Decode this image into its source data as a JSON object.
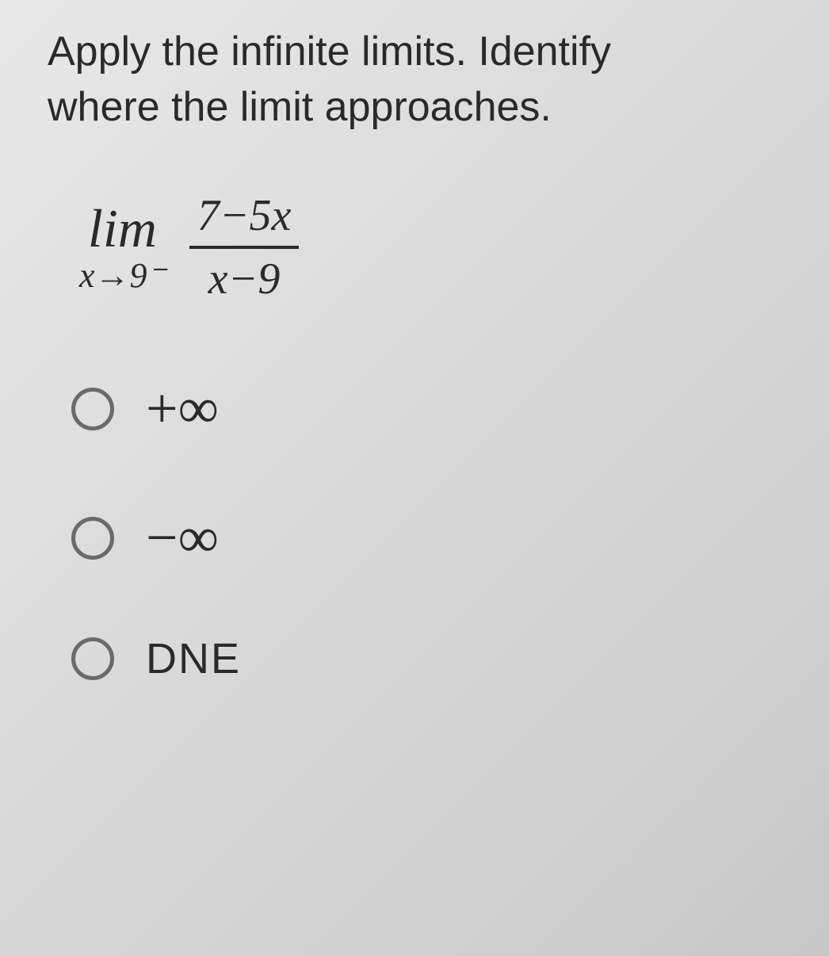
{
  "question": {
    "line1": "Apply the infinite limits. Identify",
    "line2": "where the limit approaches."
  },
  "limit": {
    "lim": "lim",
    "approach": "x→9⁻",
    "numerator": "7−5x",
    "denominator": "x−9"
  },
  "options": [
    {
      "label": "+∞",
      "kind": "sym"
    },
    {
      "label": "−∞",
      "kind": "sym"
    },
    {
      "label": "DNE",
      "kind": "text"
    }
  ],
  "colors": {
    "text": "#2a2a2a",
    "radio_border": "#6a6a6a",
    "background_from": "#e8e8e8",
    "background_to": "#c8c8c8"
  },
  "typography": {
    "question_fontsize": 52,
    "lim_fontsize": 68,
    "limsub_fontsize": 44,
    "frac_fontsize": 56,
    "option_sym_fontsize": 72,
    "option_text_fontsize": 54
  }
}
